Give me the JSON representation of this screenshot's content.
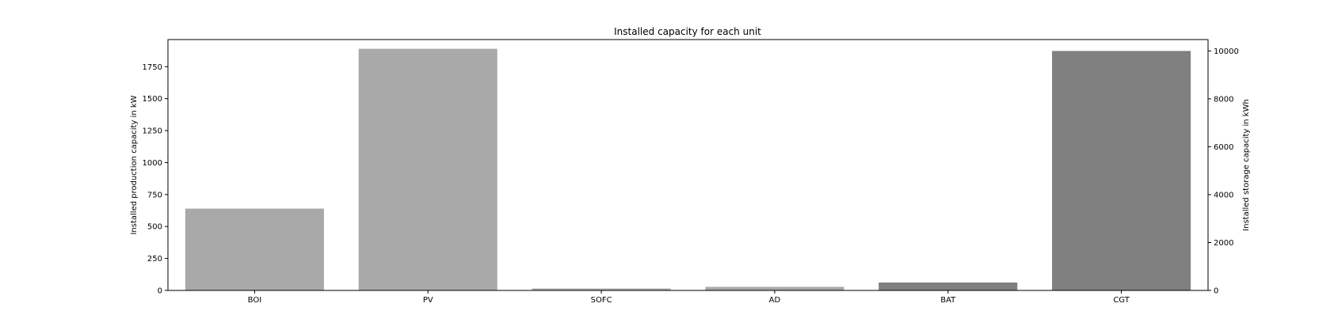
{
  "chart_data": {
    "type": "bar",
    "title": "Installed capacity for each unit",
    "xlabel": "",
    "ylabel": "Installed production capacity in kW",
    "ylabel_right": "Installed storage capacity in kWh",
    "categories": [
      "BOI",
      "PV",
      "SOFC",
      "AD",
      "BAT",
      "CGT"
    ],
    "ylim": [
      0,
      1962
    ],
    "ylim_right": [
      0,
      10475
    ],
    "yticks": [
      0,
      250,
      500,
      750,
      1000,
      1250,
      1500,
      1750
    ],
    "yticks_right": [
      0,
      2000,
      4000,
      6000,
      8000,
      10000
    ],
    "bars": [
      {
        "category": "BOI",
        "value": 640,
        "axis": "left",
        "color": "#a9a9a9"
      },
      {
        "category": "PV",
        "value": 1890,
        "axis": "left",
        "color": "#a9a9a9"
      },
      {
        "category": "SOFC",
        "value": 15,
        "axis": "left",
        "color": "#a9a9a9"
      },
      {
        "category": "AD",
        "value": 28,
        "axis": "left",
        "color": "#a9a9a9"
      },
      {
        "category": "BAT",
        "value": 330,
        "axis": "right",
        "color": "#808080"
      },
      {
        "category": "CGT",
        "value": 10000,
        "axis": "right",
        "color": "#808080"
      }
    ],
    "grid": false,
    "legend": "none"
  }
}
